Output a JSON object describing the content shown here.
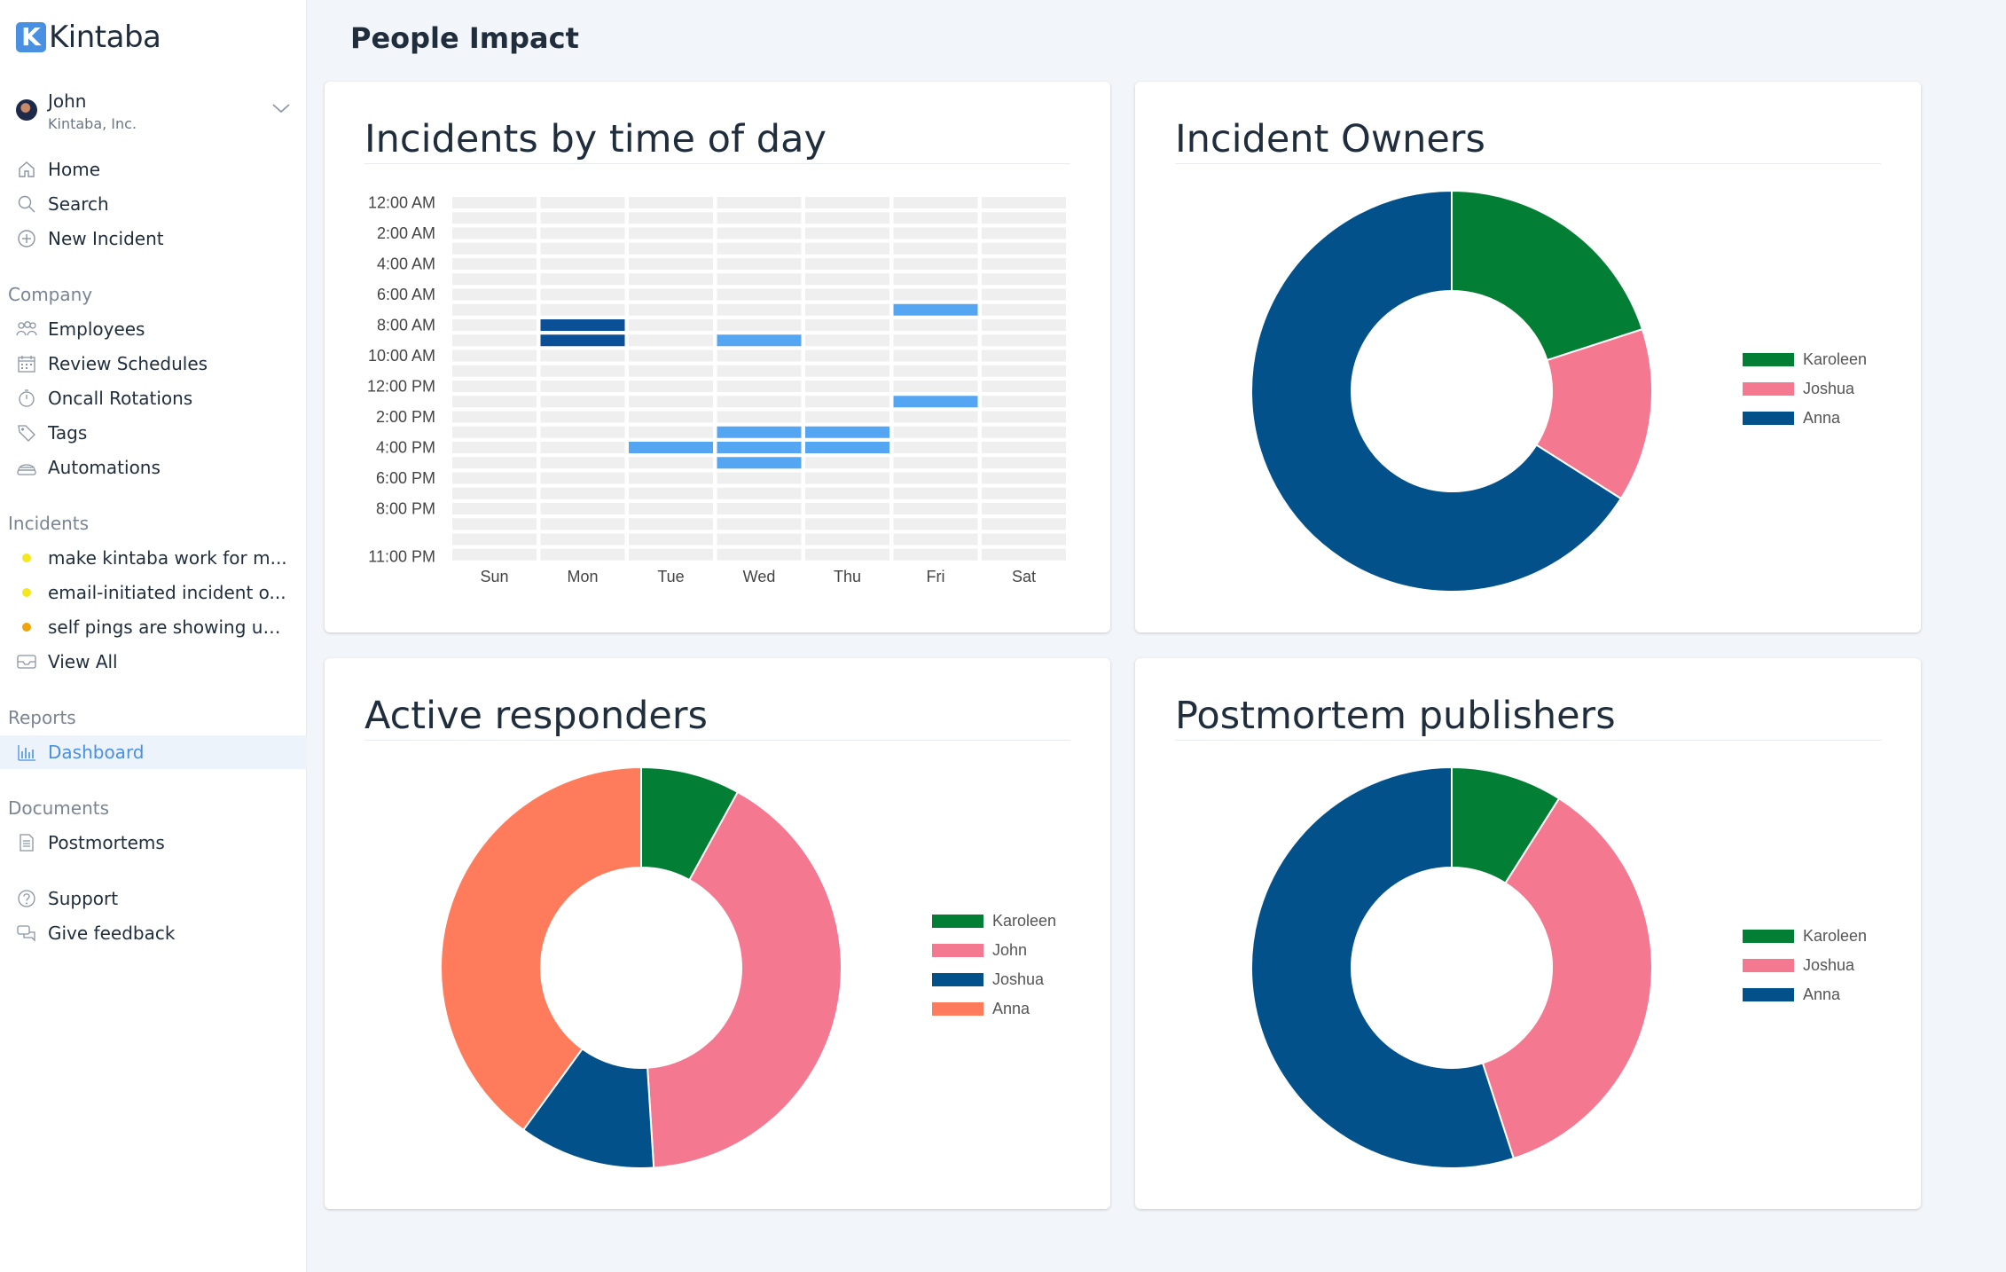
{
  "app": {
    "logo_letter": "K",
    "logo_text": "Kintaba"
  },
  "user": {
    "name": "John",
    "org": "Kintaba, Inc."
  },
  "nav_top": [
    {
      "label": "Home",
      "icon": "home-icon"
    },
    {
      "label": "Search",
      "icon": "search-icon"
    },
    {
      "label": "New Incident",
      "icon": "plus-circle-icon"
    }
  ],
  "company": {
    "label": "Company",
    "items": [
      {
        "label": "Employees",
        "icon": "people-icon"
      },
      {
        "label": "Review Schedules",
        "icon": "calendar-icon"
      },
      {
        "label": "Oncall Rotations",
        "icon": "stopwatch-icon"
      },
      {
        "label": "Tags",
        "icon": "tag-icon"
      },
      {
        "label": "Automations",
        "icon": "robot-icon"
      }
    ]
  },
  "incidents": {
    "label": "Incidents",
    "items": [
      {
        "label": "make kintaba work for m...",
        "dot_color": "#f5e71b"
      },
      {
        "label": "email-initiated incident o...",
        "dot_color": "#f5e71b"
      },
      {
        "label": "self pings are showing up...",
        "dot_color": "#f0a30a"
      }
    ],
    "view_all": "View All"
  },
  "reports": {
    "label": "Reports",
    "dashboard": "Dashboard"
  },
  "documents": {
    "label": "Documents",
    "postmortems": "Postmortems"
  },
  "footer": {
    "support": "Support",
    "feedback": "Give feedback"
  },
  "page": {
    "title": "People Impact"
  },
  "cards": {
    "time_of_day": "Incidents by time of day",
    "owners": "Incident Owners",
    "responders": "Active responders",
    "publishers": "Postmortem publishers"
  },
  "chart_data": [
    {
      "type": "heatmap",
      "title": "Incidents by time of day",
      "x_categories": [
        "Sun",
        "Mon",
        "Tue",
        "Wed",
        "Thu",
        "Fri",
        "Sat"
      ],
      "y_tick_labels": [
        "12:00 AM",
        "2:00 AM",
        "4:00 AM",
        "6:00 AM",
        "8:00 AM",
        "10:00 AM",
        "12:00 PM",
        "2:00 PM",
        "4:00 PM",
        "6:00 PM",
        "8:00 PM",
        "11:00 PM"
      ],
      "hours": 24,
      "cells": [
        {
          "day": "Mon",
          "hour": 8,
          "count": 2
        },
        {
          "day": "Mon",
          "hour": 9,
          "count": 2
        },
        {
          "day": "Tue",
          "hour": 16,
          "count": 1
        },
        {
          "day": "Wed",
          "hour": 9,
          "count": 1
        },
        {
          "day": "Wed",
          "hour": 15,
          "count": 1
        },
        {
          "day": "Wed",
          "hour": 16,
          "count": 1
        },
        {
          "day": "Wed",
          "hour": 17,
          "count": 1
        },
        {
          "day": "Thu",
          "hour": 15,
          "count": 1
        },
        {
          "day": "Thu",
          "hour": 16,
          "count": 1
        },
        {
          "day": "Fri",
          "hour": 7,
          "count": 1
        },
        {
          "day": "Fri",
          "hour": 13,
          "count": 1
        }
      ],
      "colors": {
        "empty": "#efefef",
        "low": "#55a6f2",
        "high": "#0b4f96"
      }
    },
    {
      "type": "pie",
      "title": "Incident Owners",
      "labels": [
        "Karoleen",
        "Joshua",
        "Anna"
      ],
      "values": [
        20,
        14,
        66
      ],
      "colors": [
        "#027f35",
        "#f4788f",
        "#02518b"
      ]
    },
    {
      "type": "pie",
      "title": "Active responders",
      "labels": [
        "Karoleen",
        "John",
        "Joshua",
        "Anna"
      ],
      "values": [
        8,
        41,
        11,
        40
      ],
      "colors": [
        "#027f35",
        "#f4788f",
        "#02518b",
        "#fe7c5b"
      ]
    },
    {
      "type": "pie",
      "title": "Postmortem publishers",
      "labels": [
        "Karoleen",
        "Joshua",
        "Anna"
      ],
      "values": [
        9,
        36,
        55
      ],
      "colors": [
        "#027f35",
        "#f4788f",
        "#02518b"
      ]
    }
  ]
}
